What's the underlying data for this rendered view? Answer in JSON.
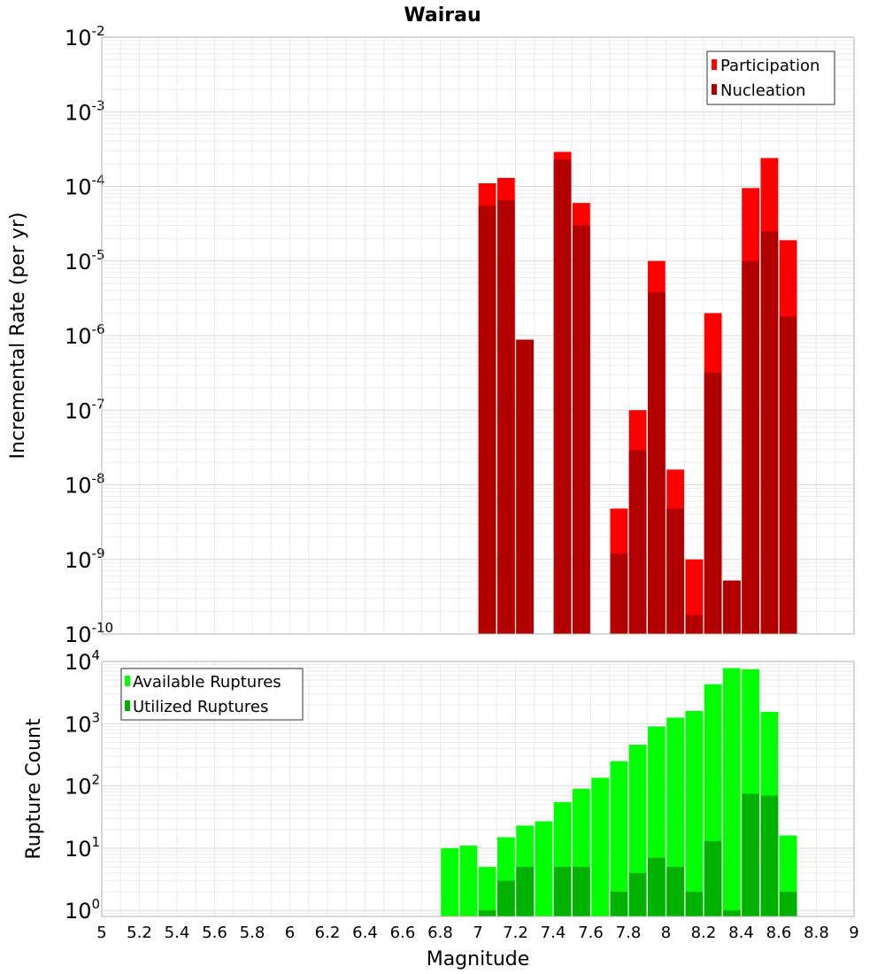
{
  "chart_data": [
    {
      "type": "bar",
      "title": "Wairau",
      "ylabel": "Incremental Rate (per yr)",
      "xlabel": "",
      "xlim": [
        5,
        9
      ],
      "yscale": "log",
      "ylim": [
        1e-10,
        0.01
      ],
      "y_tick_exponents": [
        "-10",
        "-9",
        "-8",
        "-7",
        "-6",
        "-5",
        "-4",
        "-3",
        "-2"
      ],
      "grid": true,
      "legend_position": "top-right",
      "x": [
        7.05,
        7.15,
        7.25,
        7.45,
        7.55,
        7.75,
        7.85,
        7.95,
        8.05,
        8.15,
        8.25,
        8.35,
        8.45,
        8.55,
        8.65
      ],
      "series": [
        {
          "name": "Participation",
          "color": "#ff0000",
          "values": [
            0.00011,
            0.00013,
            8.8e-07,
            0.00029,
            6e-05,
            4.8e-09,
            1e-07,
            1e-05,
            1.6e-08,
            1e-09,
            2e-06,
            5.2e-10,
            9.5e-05,
            0.00024,
            1.9e-05
          ]
        },
        {
          "name": "Nucleation",
          "color": "#b20000",
          "values": [
            5.5e-05,
            6.5e-05,
            8.8e-07,
            0.00023,
            3e-05,
            1.2e-09,
            2.9e-08,
            3.8e-06,
            4.8e-09,
            1.8e-10,
            3.2e-07,
            5.2e-10,
            1e-05,
            2.5e-05,
            1.8e-06
          ]
        }
      ]
    },
    {
      "type": "bar",
      "ylabel": "Rupture Count",
      "xlabel": "Magnitude",
      "xlim": [
        5,
        9
      ],
      "x_ticks": [
        "5",
        "5.2",
        "5.4",
        "5.6",
        "5.8",
        "6",
        "6.2",
        "6.4",
        "6.6",
        "6.8",
        "7",
        "7.2",
        "7.4",
        "7.6",
        "7.8",
        "8",
        "8.2",
        "8.4",
        "8.6",
        "8.8",
        "9"
      ],
      "yscale": "log",
      "ylim": [
        0.8,
        10000
      ],
      "y_tick_exponents": [
        "0",
        "1",
        "2",
        "3",
        "4"
      ],
      "grid": true,
      "legend_position": "top-left",
      "x": [
        6.85,
        6.95,
        7.05,
        7.15,
        7.25,
        7.35,
        7.45,
        7.55,
        7.65,
        7.75,
        7.85,
        7.95,
        8.05,
        8.15,
        8.25,
        8.35,
        8.45,
        8.55,
        8.65
      ],
      "series": [
        {
          "name": "Available Ruptures",
          "color": "#00ff00",
          "values": [
            10,
            11,
            5,
            15,
            23,
            27,
            55,
            90,
            135,
            250,
            460,
            900,
            1250,
            1600,
            4300,
            7800,
            7500,
            1550,
            16
          ]
        },
        {
          "name": "Utilized Ruptures",
          "color": "#00b200",
          "values": [
            0,
            0,
            1,
            3,
            5,
            0,
            5,
            5,
            0,
            2,
            4,
            7,
            5,
            2,
            13,
            1,
            75,
            70,
            2
          ]
        }
      ]
    }
  ]
}
